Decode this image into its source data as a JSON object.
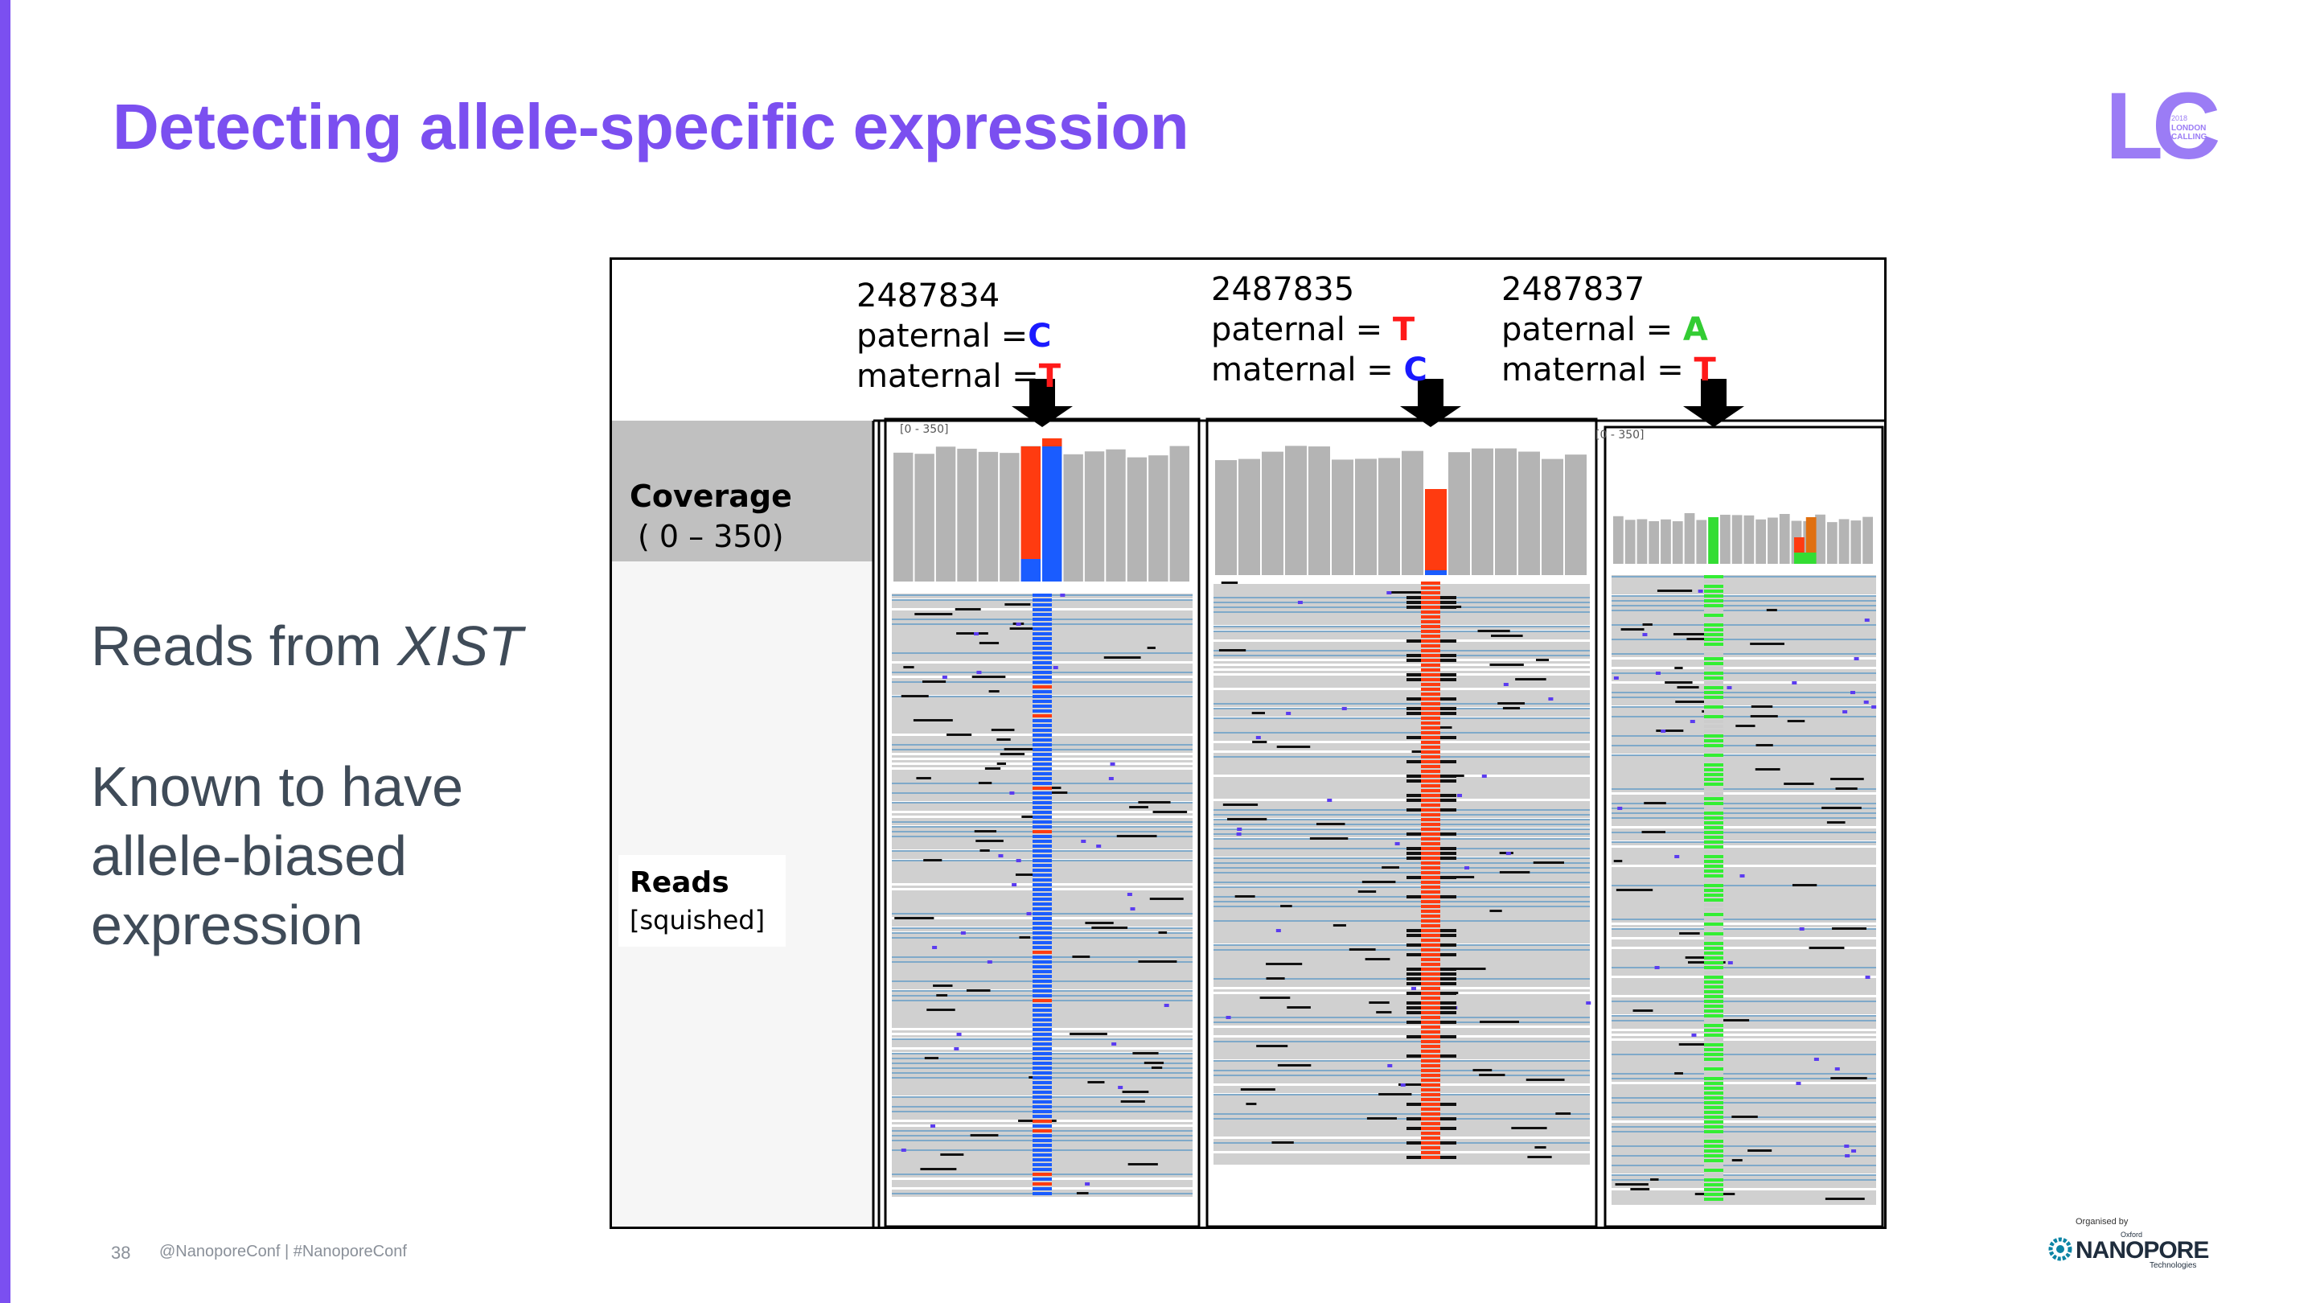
{
  "slide": {
    "title": "Detecting allele-specific expression",
    "body_line1_prefix": "Reads from ",
    "body_line1_italic": "XIST",
    "body_para2": [
      "Known to have",
      "allele-biased",
      "expression"
    ],
    "page_number": "38",
    "footer_handle": "@NanoporeConf | #NanoporeConf",
    "logo": {
      "letters": "LC",
      "year": "2018",
      "line1": "LONDON",
      "line2": "CALLING"
    },
    "organiser": {
      "by": "Organised by",
      "oxford": "Oxford",
      "name": "NANOPORE",
      "tech": "Technologies"
    }
  },
  "figure": {
    "labels": {
      "coverage": "Coverage",
      "coverage_range": "( 0 – 350)",
      "reads": "Reads",
      "reads_mode": "[squished]",
      "track_range": "[0 - 350]"
    },
    "loci": [
      {
        "position": "2487834",
        "paternal_label": "paternal =",
        "paternal_base": "C",
        "maternal_label": "maternal =",
        "maternal_base": "T"
      },
      {
        "position": "2487835",
        "paternal_label": "paternal = ",
        "paternal_base": "T",
        "maternal_label": "maternal = ",
        "maternal_base": "C"
      },
      {
        "position": "2487837",
        "paternal_label": "paternal = ",
        "paternal_base": "A",
        "maternal_label": "maternal = ",
        "maternal_base": "T"
      }
    ]
  },
  "colors": {
    "accent": "#7b4ff0",
    "base_C": "#1a1aff",
    "base_T": "#ff1a1a",
    "base_A": "#33cc33",
    "text_dark": "#3f4b58"
  }
}
